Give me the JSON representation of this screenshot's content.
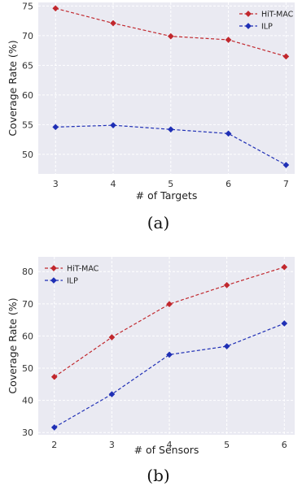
{
  "chart_data": [
    {
      "type": "line",
      "caption": "(a)",
      "xlabel": "# of Targets",
      "ylabel": "Coverage Rate (%)",
      "x": [
        3,
        4,
        5,
        6,
        7
      ],
      "xlim": [
        2.7,
        7.15
      ],
      "ylim": [
        46.7,
        75.6
      ],
      "yticks": [
        50,
        55,
        60,
        65,
        70,
        75
      ],
      "grid": true,
      "legend_position": "top-right",
      "series": [
        {
          "name": "HiT-MAC",
          "color": "#c1272d",
          "values": [
            74.6,
            72.1,
            69.9,
            69.3,
            66.5
          ]
        },
        {
          "name": "ILP",
          "color": "#1f2fb5",
          "values": [
            54.6,
            54.9,
            54.2,
            53.5,
            48.2
          ]
        }
      ]
    },
    {
      "type": "line",
      "caption": "(b)",
      "xlabel": "# of Sensors",
      "ylabel": "Coverage Rate (%)",
      "x": [
        2,
        3,
        4,
        5,
        6
      ],
      "xlim": [
        1.72,
        6.18
      ],
      "ylim": [
        29.3,
        84.6
      ],
      "yticks": [
        30,
        40,
        50,
        60,
        70,
        80
      ],
      "grid": true,
      "legend_position": "top-left",
      "series": [
        {
          "name": "HiT-MAC",
          "color": "#c1272d",
          "values": [
            47.3,
            59.6,
            69.9,
            75.8,
            81.4
          ]
        },
        {
          "name": "ILP",
          "color": "#1f2fb5",
          "values": [
            31.6,
            41.9,
            54.2,
            56.8,
            63.9
          ]
        }
      ]
    }
  ]
}
